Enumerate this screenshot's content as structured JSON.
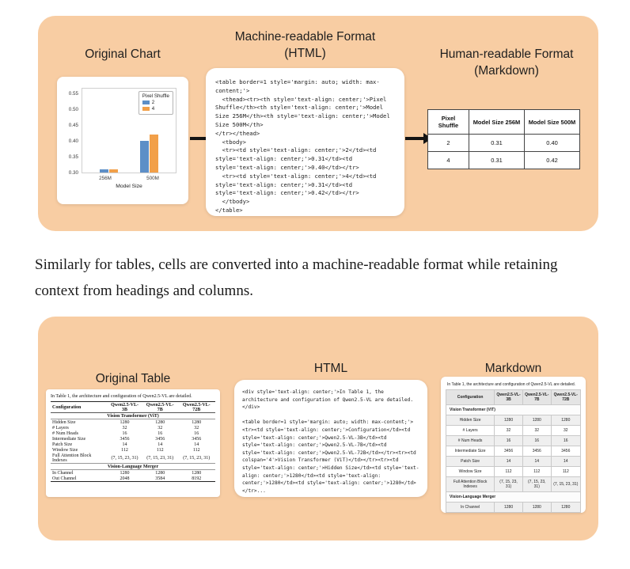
{
  "page": {
    "body_text": "Similarly for tables, cells are converted into a machine-readable format while retaining context from headings and columns."
  },
  "colors": {
    "panel_bg": "#f8cda3",
    "bar_blue": "#5d8fc7",
    "bar_orange": "#f2a049"
  },
  "chart_data": {
    "type": "bar",
    "title": "",
    "categories": [
      "256M",
      "500M"
    ],
    "series": [
      {
        "name": "2",
        "color": "#5d8fc7",
        "values": [
          0.31,
          0.4
        ]
      },
      {
        "name": "4",
        "color": "#f2a049",
        "values": [
          0.31,
          0.42
        ]
      }
    ],
    "legend_title": "Pixel Shuffle",
    "legend_position": "upper right",
    "xlabel": "Model Size",
    "ylabel": "",
    "ylim": [
      0.3,
      0.57
    ],
    "yticks": [
      0.3,
      0.35,
      0.4,
      0.45,
      0.5,
      0.55
    ],
    "grid": false
  },
  "panel1": {
    "col1_title": "Original Chart",
    "col2_title_line1": "Machine-readable Format",
    "col2_title_line2": "(HTML)",
    "col3_title_line1": "Human-readable Format",
    "col3_title_line2": "(Markdown)",
    "code": "<table border=1 style='margin: auto; width: max-content;'>\n  <thead><tr><th style='text-align: center;'>Pixel Shuffle</th><th style='text-align: center;'>Model Size 256M</th><th style='text-align: center;'>Model Size 500M</th>\n</tr></thead>\n  <tbody>\n  <tr><td style='text-align: center;'>2</td><td style='text-align: center;'>0.31</td><td style='text-align: center;'>0.40</td></tr>\n  <tr><td style='text-align: center;'>4</td><td style='text-align: center;'>0.31</td><td style='text-align: center;'>0.42</td></tr>\n  </tbody>\n</table>",
    "table": {
      "headers": [
        "Pixel Shuffle",
        "Model Size 256M",
        "Model Size 500M"
      ],
      "rows": [
        [
          "2",
          "0.31",
          "0.40"
        ],
        [
          "4",
          "0.31",
          "0.42"
        ]
      ]
    }
  },
  "panel2": {
    "col1_title": "Original Table",
    "col2_title": "HTML",
    "col3_title": "Markdown",
    "original": {
      "caption": "In Table 1, the architecture and configuration of Qwen2.5-VL are detailed.",
      "headers": [
        "Configuration",
        "Qwen2.5-VL-3B",
        "Qwen2.5-VL-7B",
        "Qwen2.5-VL-72B"
      ],
      "section1": "Vision Transformer (ViT)",
      "rows1": [
        [
          "Hidden Size",
          "1280",
          "1280",
          "1280"
        ],
        [
          "# Layers",
          "32",
          "32",
          "32"
        ],
        [
          "# Num Heads",
          "16",
          "16",
          "16"
        ],
        [
          "Intermediate Size",
          "3456",
          "3456",
          "3456"
        ],
        [
          "Patch Size",
          "14",
          "14",
          "14"
        ],
        [
          "Window Size",
          "112",
          "112",
          "112"
        ],
        [
          "Full Attention Block Indexes",
          "(7, 15, 23, 31)",
          "(7, 15, 23, 31)",
          "(7, 15, 23, 31)"
        ]
      ],
      "section2": "Vision-Language Merger",
      "rows2": [
        [
          "In Channel",
          "1280",
          "1280",
          "1280"
        ],
        [
          "Out Channel",
          "2048",
          "3584",
          "8192"
        ]
      ]
    },
    "code": "<div style='text-align: center;'>In Table 1, the architecture and configuration of Qwen2.5-VL are detailed.\n</div>\n\n<table border=1 style='margin: auto; width: max-content;'>\n<tr><td style='text-align: center;'>Configuration</td><td style='text-align: center;'>Qwen2.5-VL-3B</td><td style='text-align: center;'>Qwen2.5-VL-7B</td><td style='text-align: center;'>Qwen2.5-VL-72B</td></tr><tr><td colspan='4'>Vision Transformer (ViT)</td></tr><tr><td style='text-align: center;'>Hidden Size</td><td style='text-align: center;'>1280</td><td style='text-align: center;'>1280</td><td style='text-align: center;'>1280</td>\n</tr>...",
    "markdown": {
      "caption": "In Table 1, the architecture and configuration of Qwen2.5-VL are detailed.",
      "headers": [
        "Configuration",
        "Qwen2.5-VL-3B",
        "Qwen2.5-VL-7B",
        "Qwen2.5-VL-72B"
      ],
      "section1": "Vision Transformer (ViT)",
      "rows1": [
        [
          "Hidden Size",
          "1280",
          "1280",
          "1280"
        ],
        [
          "# Layers",
          "32",
          "32",
          "32"
        ],
        [
          "# Num Heads",
          "16",
          "16",
          "16"
        ],
        [
          "Intermediate Size",
          "3456",
          "3456",
          "3456"
        ],
        [
          "Patch Size",
          "14",
          "14",
          "14"
        ],
        [
          "Window Size",
          "112",
          "112",
          "112"
        ],
        [
          "Full Attention Block Indexes",
          "(7, 15, 23, 31)",
          "(7, 15, 23, 31)",
          "(7, 15, 23, 31)"
        ]
      ],
      "section2": "Vision-Language Merger",
      "rows2": [
        [
          "In Channel",
          "1280",
          "1280",
          "1280"
        ],
        [
          "Out Channel",
          "2048",
          "3584",
          "8192"
        ]
      ]
    }
  }
}
